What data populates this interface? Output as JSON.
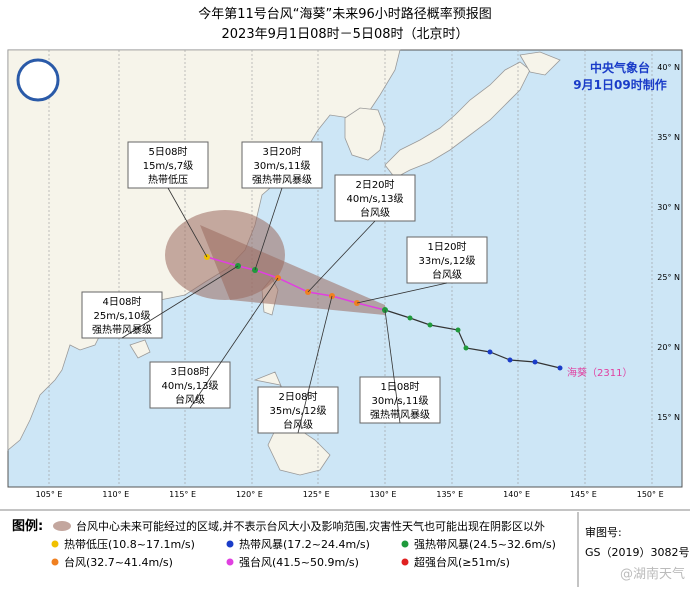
{
  "header": {
    "title": "今年第11号台风“海葵”未来96小时路径概率预报图",
    "subtitle": "2023年9月1日08时－5日08时（北京时）"
  },
  "agency": {
    "name": "中央气象台",
    "issued": "9月1日09时制作"
  },
  "callouts": [
    {
      "time": "5日08时",
      "wind": "15m/s,7级",
      "level": "热带低压"
    },
    {
      "time": "3日20时",
      "wind": "30m/s,11级",
      "level": "强热带风暴级"
    },
    {
      "time": "2日20时",
      "wind": "40m/s,13级",
      "level": "台风级"
    },
    {
      "time": "1日20时",
      "wind": "33m/s,12级",
      "level": "台风级"
    },
    {
      "time": "4日08时",
      "wind": "25m/s,10级",
      "level": "强热带风暴级"
    },
    {
      "time": "3日08时",
      "wind": "40m/s,13级",
      "level": "台风级"
    },
    {
      "time": "2日08时",
      "wind": "35m/s,12级",
      "level": "台风级"
    },
    {
      "time": "1日08时",
      "wind": "30m/s,11级",
      "level": "强热带风暴级"
    }
  ],
  "storm_label": "海葵（2311）",
  "lon_labels": [
    "105° E",
    "110° E",
    "115° E",
    "120° E",
    "125° E",
    "130° E",
    "135° E",
    "140° E",
    "145° E",
    "150° E"
  ],
  "lat_labels": [
    "15° N",
    "20° N",
    "25° N",
    "30° N",
    "35° N",
    "40° N"
  ],
  "legend": {
    "label": "图例:",
    "cone": "台风中心未来可能经过的区域,并不表示台风大小及影响范围,灾害性天气也可能出现在阴影区以外",
    "items": [
      {
        "name": "热带低压(10.8~17.1m/s)",
        "color": "#f0c000"
      },
      {
        "name": "热带风暴(17.2~24.4m/s)",
        "color": "#1a3cc8"
      },
      {
        "name": "强热带风暴(24.5~32.6m/s)",
        "color": "#1f9a3c"
      },
      {
        "name": "台风(32.7~41.4m/s)",
        "color": "#f08020"
      },
      {
        "name": "强台风(41.5~50.9m/s)",
        "color": "#e040e0"
      },
      {
        "name": "超强台风(≥51m/s)",
        "color": "#e02020"
      }
    ]
  },
  "review": {
    "label": "审图号:",
    "number": "GS（2019）3082号"
  },
  "watermark": "@湖南天气"
}
